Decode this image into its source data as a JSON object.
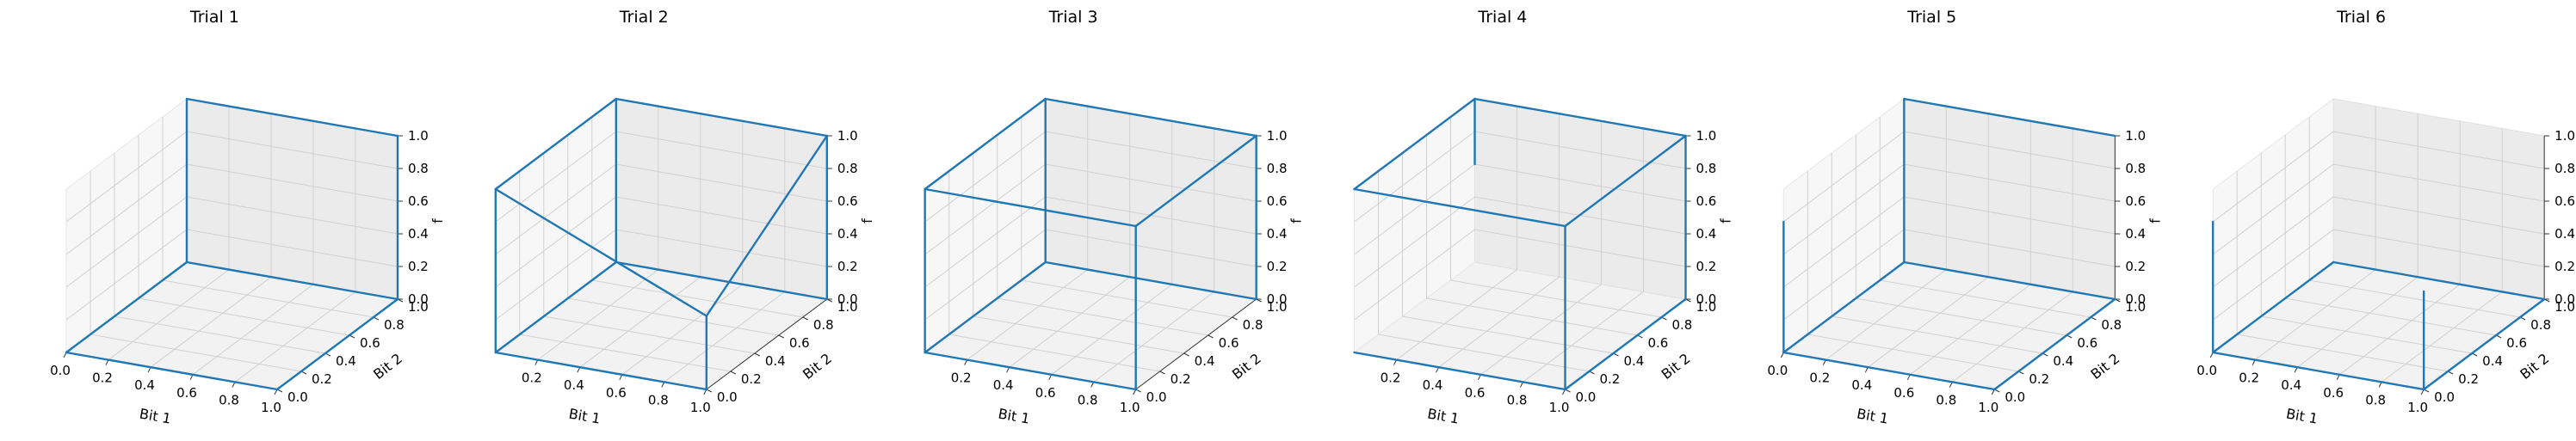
{
  "colors": {
    "line": "#1f77b4",
    "pane_bottom": "#f2f2f2",
    "pane_back": "#ebebeb",
    "pane_side": "#f7f7f7",
    "grid": "#d0d0d0",
    "axis": "#333333"
  },
  "chart_data": [
    {
      "type": "line3d",
      "title": "Trial 1",
      "xlabel": "Bit 1",
      "ylabel": "Bit 2",
      "zlabel": "f",
      "xlim": [
        0,
        1
      ],
      "ylim": [
        0,
        1
      ],
      "zlim": [
        0,
        1
      ],
      "xticks": [
        "0.0",
        "0.2",
        "0.4",
        "0.6",
        "0.8",
        "1.0"
      ],
      "yticks": [
        "0.0",
        "0.2",
        "0.4",
        "0.6",
        "0.8",
        "1.0"
      ],
      "zticks": [
        "0.0",
        "0.2",
        "0.4",
        "0.6",
        "0.8",
        "1.0"
      ],
      "segments": [
        [
          [
            0,
            0,
            0
          ],
          [
            1,
            0,
            0
          ]
        ],
        [
          [
            1,
            0,
            0
          ],
          [
            1,
            1,
            0
          ]
        ],
        [
          [
            1,
            1,
            0
          ],
          [
            0,
            1,
            0
          ]
        ],
        [
          [
            0,
            1,
            0
          ],
          [
            0,
            0,
            0
          ]
        ],
        [
          [
            0,
            1,
            0
          ],
          [
            0,
            1,
            1
          ]
        ],
        [
          [
            0,
            1,
            1
          ],
          [
            1,
            1,
            1
          ]
        ],
        [
          [
            1,
            1,
            1
          ],
          [
            1,
            1,
            0
          ]
        ]
      ]
    },
    {
      "type": "line3d",
      "title": "Trial 2",
      "xlabel": "Bit 1",
      "ylabel": "Bit 2",
      "zlabel": "f",
      "xlim": [
        0,
        1
      ],
      "ylim": [
        0,
        1
      ],
      "zlim": [
        0,
        1
      ],
      "xticks": [
        "0.2",
        "0.4",
        "0.6",
        "0.8",
        "1.0"
      ],
      "yticks": [
        "0.0",
        "0.2",
        "0.4",
        "0.6",
        "0.8",
        "1.0"
      ],
      "zticks": [
        "0.0",
        "0.2",
        "0.4",
        "0.6",
        "0.8",
        "1.0"
      ],
      "segments": [
        [
          [
            0,
            0,
            0
          ],
          [
            1,
            0,
            0
          ]
        ],
        [
          [
            1,
            0,
            0
          ],
          [
            1,
            0,
            0.45
          ]
        ],
        [
          [
            0,
            0,
            0
          ],
          [
            0,
            0,
            1
          ]
        ],
        [
          [
            0,
            0,
            1
          ],
          [
            1,
            0,
            0.45
          ]
        ],
        [
          [
            0,
            0,
            0
          ],
          [
            0,
            1,
            0
          ]
        ],
        [
          [
            0,
            1,
            0
          ],
          [
            1,
            1,
            0
          ]
        ],
        [
          [
            1,
            1,
            0
          ],
          [
            1,
            1,
            1
          ]
        ],
        [
          [
            0,
            1,
            0
          ],
          [
            0,
            1,
            1
          ]
        ],
        [
          [
            0,
            1,
            1
          ],
          [
            1,
            1,
            1
          ]
        ],
        [
          [
            0,
            0,
            1
          ],
          [
            0,
            1,
            1
          ]
        ],
        [
          [
            1,
            0,
            0.45
          ],
          [
            1,
            1,
            1
          ]
        ]
      ]
    },
    {
      "type": "line3d",
      "title": "Trial 3",
      "xlabel": "Bit 1",
      "ylabel": "Bit 2",
      "zlabel": "f",
      "xlim": [
        0,
        1
      ],
      "ylim": [
        0,
        1
      ],
      "zlim": [
        0,
        1
      ],
      "xticks": [
        "0.2",
        "0.4",
        "0.6",
        "0.8",
        "1.0"
      ],
      "yticks": [
        "0.0",
        "0.2",
        "0.4",
        "0.6",
        "0.8",
        "1.0"
      ],
      "zticks": [
        "0.0",
        "0.2",
        "0.4",
        "0.6",
        "0.8",
        "1.0"
      ],
      "segments": [
        [
          [
            0,
            0,
            0
          ],
          [
            1,
            0,
            0
          ]
        ],
        [
          [
            1,
            0,
            0
          ],
          [
            1,
            0,
            1
          ]
        ],
        [
          [
            0,
            0,
            0
          ],
          [
            0,
            0,
            1
          ]
        ],
        [
          [
            0,
            0,
            1
          ],
          [
            1,
            0,
            1
          ]
        ],
        [
          [
            0,
            0,
            0
          ],
          [
            0,
            1,
            0
          ]
        ],
        [
          [
            0,
            1,
            0
          ],
          [
            1,
            1,
            0
          ]
        ],
        [
          [
            1,
            1,
            0
          ],
          [
            1,
            1,
            1
          ]
        ],
        [
          [
            0,
            1,
            0
          ],
          [
            0,
            1,
            1
          ]
        ],
        [
          [
            0,
            1,
            1
          ],
          [
            1,
            1,
            1
          ]
        ],
        [
          [
            0,
            0,
            1
          ],
          [
            0,
            1,
            1
          ]
        ],
        [
          [
            1,
            0,
            1
          ],
          [
            1,
            1,
            1
          ]
        ]
      ]
    },
    {
      "type": "line3d",
      "title": "Trial 4",
      "xlabel": "Bit 1",
      "ylabel": "Bit 2",
      "zlabel": "f",
      "xlim": [
        0,
        1
      ],
      "ylim": [
        0,
        1
      ],
      "zlim": [
        0,
        1
      ],
      "xticks": [
        "0.2",
        "0.4",
        "0.6",
        "0.8",
        "1.0"
      ],
      "yticks": [
        "0.0",
        "0.2",
        "0.4",
        "0.6",
        "0.8",
        "1.0"
      ],
      "zticks": [
        "0.0",
        "0.2",
        "0.4",
        "0.6",
        "0.8",
        "1.0"
      ],
      "segments": [
        [
          [
            0,
            0,
            0
          ],
          [
            1,
            0,
            0
          ]
        ],
        [
          [
            1,
            0,
            0
          ],
          [
            1,
            0,
            1
          ]
        ],
        [
          [
            0,
            0,
            1
          ],
          [
            1,
            0,
            1
          ]
        ],
        [
          [
            0,
            0,
            1
          ],
          [
            0,
            1,
            1
          ]
        ],
        [
          [
            0,
            1,
            1
          ],
          [
            1,
            1,
            1
          ]
        ],
        [
          [
            1,
            0,
            1
          ],
          [
            1,
            1,
            1
          ]
        ],
        [
          [
            1,
            1,
            1
          ],
          [
            1,
            1,
            0
          ]
        ],
        [
          [
            1,
            1,
            0
          ],
          [
            1,
            0,
            0
          ]
        ],
        [
          [
            0,
            1,
            1
          ],
          [
            0,
            1,
            0.6
          ]
        ]
      ]
    },
    {
      "type": "line3d",
      "title": "Trial 5",
      "xlabel": "Bit 1",
      "ylabel": "Bit 2",
      "zlabel": "f",
      "xlim": [
        0,
        1
      ],
      "ylim": [
        0,
        1
      ],
      "zlim": [
        0,
        1
      ],
      "xticks": [
        "0.0",
        "0.2",
        "0.4",
        "0.6",
        "0.8",
        "1.0"
      ],
      "yticks": [
        "0.0",
        "0.2",
        "0.4",
        "0.6",
        "0.8",
        "1.0"
      ],
      "zticks": [
        "0.0",
        "0.2",
        "0.4",
        "0.6",
        "0.8",
        "1.0"
      ],
      "segments": [
        [
          [
            0,
            0,
            0
          ],
          [
            1,
            0,
            0
          ]
        ],
        [
          [
            1,
            0,
            0
          ],
          [
            1,
            1,
            0
          ]
        ],
        [
          [
            1,
            1,
            0
          ],
          [
            0,
            1,
            0
          ]
        ],
        [
          [
            0,
            1,
            0
          ],
          [
            0,
            0,
            0
          ]
        ],
        [
          [
            0,
            0,
            0
          ],
          [
            0,
            0,
            0.8
          ]
        ],
        [
          [
            0,
            1,
            0
          ],
          [
            0,
            1,
            1
          ]
        ],
        [
          [
            0,
            1,
            1
          ],
          [
            1,
            1,
            1
          ]
        ]
      ]
    },
    {
      "type": "line3d",
      "title": "Trial 6",
      "xlabel": "Bit 1",
      "ylabel": "Bit 2",
      "zlabel": "f",
      "xlim": [
        0,
        1
      ],
      "ylim": [
        0,
        1
      ],
      "zlim": [
        0,
        1
      ],
      "xticks": [
        "0.0",
        "0.2",
        "0.4",
        "0.6",
        "0.8",
        "1.0"
      ],
      "yticks": [
        "0.0",
        "0.2",
        "0.4",
        "0.6",
        "0.8",
        "1.0"
      ],
      "zticks": [
        "0.0",
        "0.2",
        "0.4",
        "0.6",
        "0.8",
        "1.0"
      ],
      "segments": [
        [
          [
            0,
            0,
            0
          ],
          [
            1,
            0,
            0
          ]
        ],
        [
          [
            1,
            0,
            0
          ],
          [
            1,
            1,
            0
          ]
        ],
        [
          [
            1,
            1,
            0
          ],
          [
            0,
            1,
            0
          ]
        ],
        [
          [
            0,
            1,
            0
          ],
          [
            0,
            0,
            0
          ]
        ],
        [
          [
            0,
            0,
            0
          ],
          [
            0,
            0,
            0.8
          ]
        ],
        [
          [
            1,
            0,
            0
          ],
          [
            1,
            0,
            0.6
          ]
        ]
      ]
    }
  ]
}
